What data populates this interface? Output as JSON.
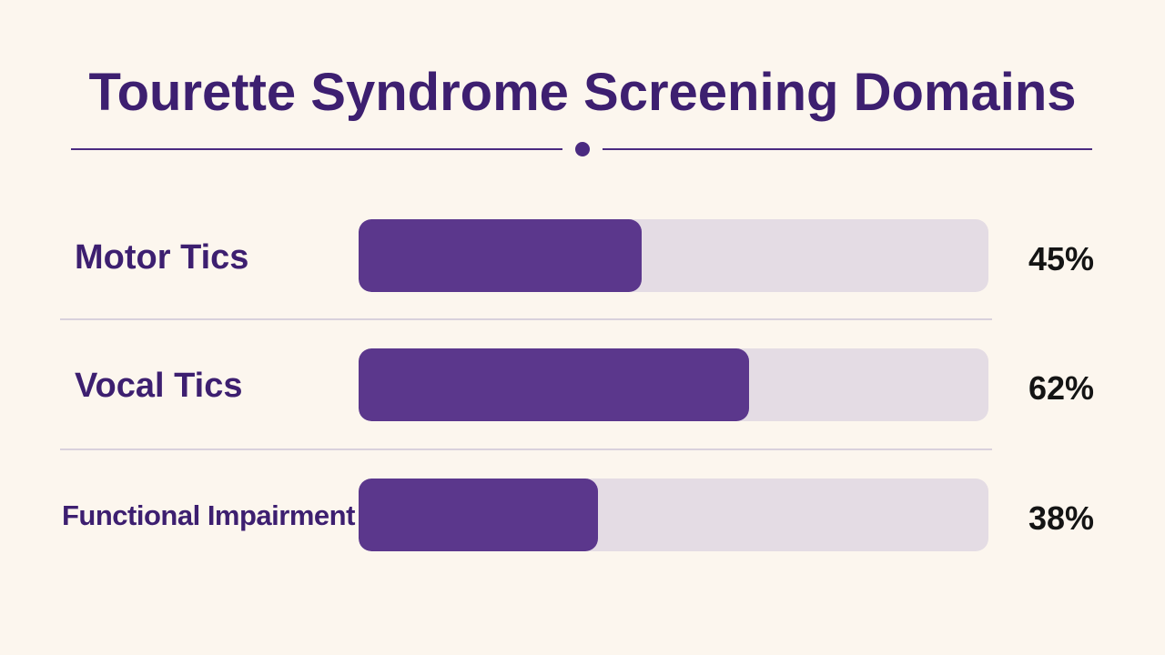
{
  "title": "Tourette Syndrome Screening Domains",
  "colors": {
    "background": "#fcf6ee",
    "title": "#3d1f70",
    "bar_fill": "#5b378c",
    "bar_track": "#e4dce4",
    "value_text": "#141414"
  },
  "chart_data": {
    "type": "bar",
    "orientation": "horizontal",
    "title": "Tourette Syndrome Screening Domains",
    "categories": [
      "Motor Tics",
      "Vocal Tics",
      "Functional Impairment"
    ],
    "values": [
      45,
      62,
      38
    ],
    "value_labels": [
      "45%",
      "62%",
      "38%"
    ],
    "unit": "%",
    "xlim": [
      0,
      100
    ],
    "grid": false,
    "legend": "none"
  }
}
